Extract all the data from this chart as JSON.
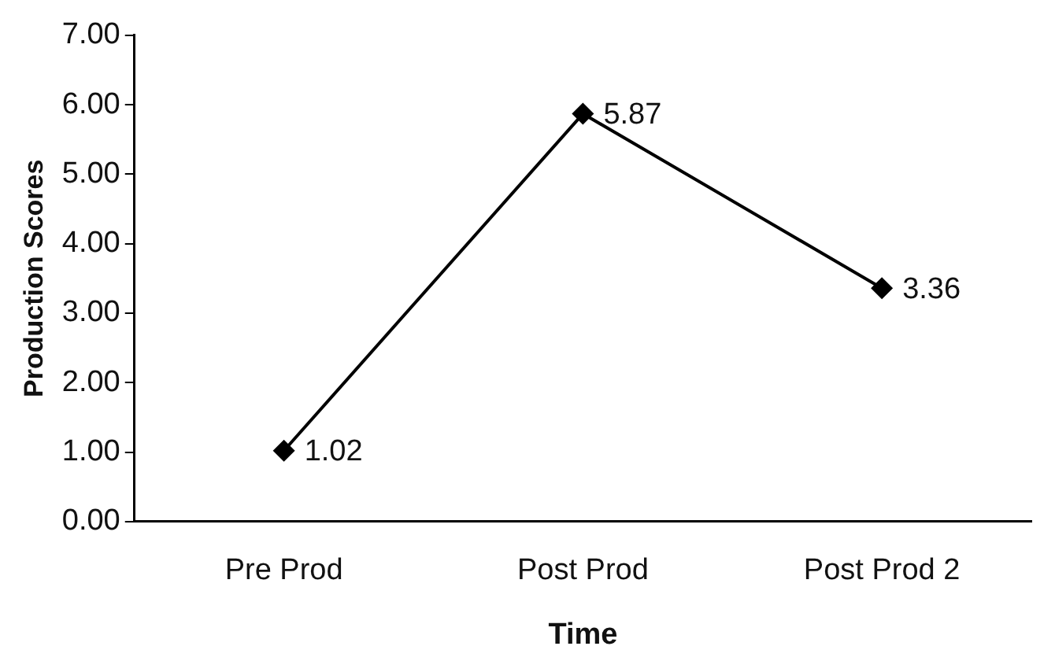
{
  "chart_data": {
    "type": "line",
    "xlabel": "Time",
    "ylabel": "Production Scores",
    "categories": [
      "Pre Prod",
      "Post Prod",
      "Post Prod 2"
    ],
    "series": [
      {
        "color": "#000000",
        "values": [
          1.02,
          5.87,
          3.36
        ]
      }
    ],
    "ylim": [
      0,
      7
    ],
    "yticks": [
      {
        "value": 0,
        "label": "0.00"
      },
      {
        "value": 1,
        "label": "1.00"
      },
      {
        "value": 2,
        "label": "2.00"
      },
      {
        "value": 3,
        "label": "3.00"
      },
      {
        "value": 4,
        "label": "4.00"
      },
      {
        "value": 5,
        "label": "5.00"
      },
      {
        "value": 6,
        "label": "6.00"
      },
      {
        "value": 7,
        "label": "7.00"
      }
    ],
    "grid": false,
    "legend": false,
    "marker": "diamond",
    "line_style": "solid",
    "data_labels": true
  }
}
